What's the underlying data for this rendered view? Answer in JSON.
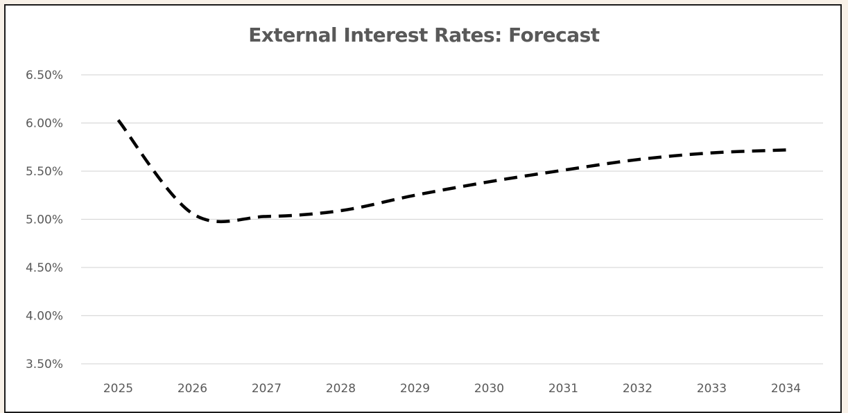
{
  "chart_data": {
    "type": "line",
    "title": "External Interest Rates: Forecast",
    "xlabel": "",
    "ylabel": "",
    "categories": [
      "2025",
      "2026",
      "2027",
      "2028",
      "2029",
      "2030",
      "2031",
      "2032",
      "2033",
      "2034"
    ],
    "series": [
      {
        "values": [
          6.03,
          5.06,
          5.03,
          5.09,
          5.25,
          5.39,
          5.51,
          5.62,
          5.69,
          5.72
        ],
        "color": "#000000",
        "line_style": "dashed"
      }
    ],
    "ylim": [
      3.5,
      6.5
    ],
    "yticks": [
      3.5,
      4.0,
      4.5,
      5.0,
      5.5,
      6.0,
      6.5
    ],
    "ytick_labels": [
      "3.50%",
      "4.00%",
      "4.50%",
      "5.00%",
      "5.50%",
      "6.00%",
      "6.50%"
    ],
    "grid": true,
    "legend": "none"
  },
  "colors": {
    "page_background": "#f8f1e8",
    "chart_background": "#ffffff",
    "gridline": "#d9d9d9",
    "text": "#595959",
    "line": "#000000"
  }
}
